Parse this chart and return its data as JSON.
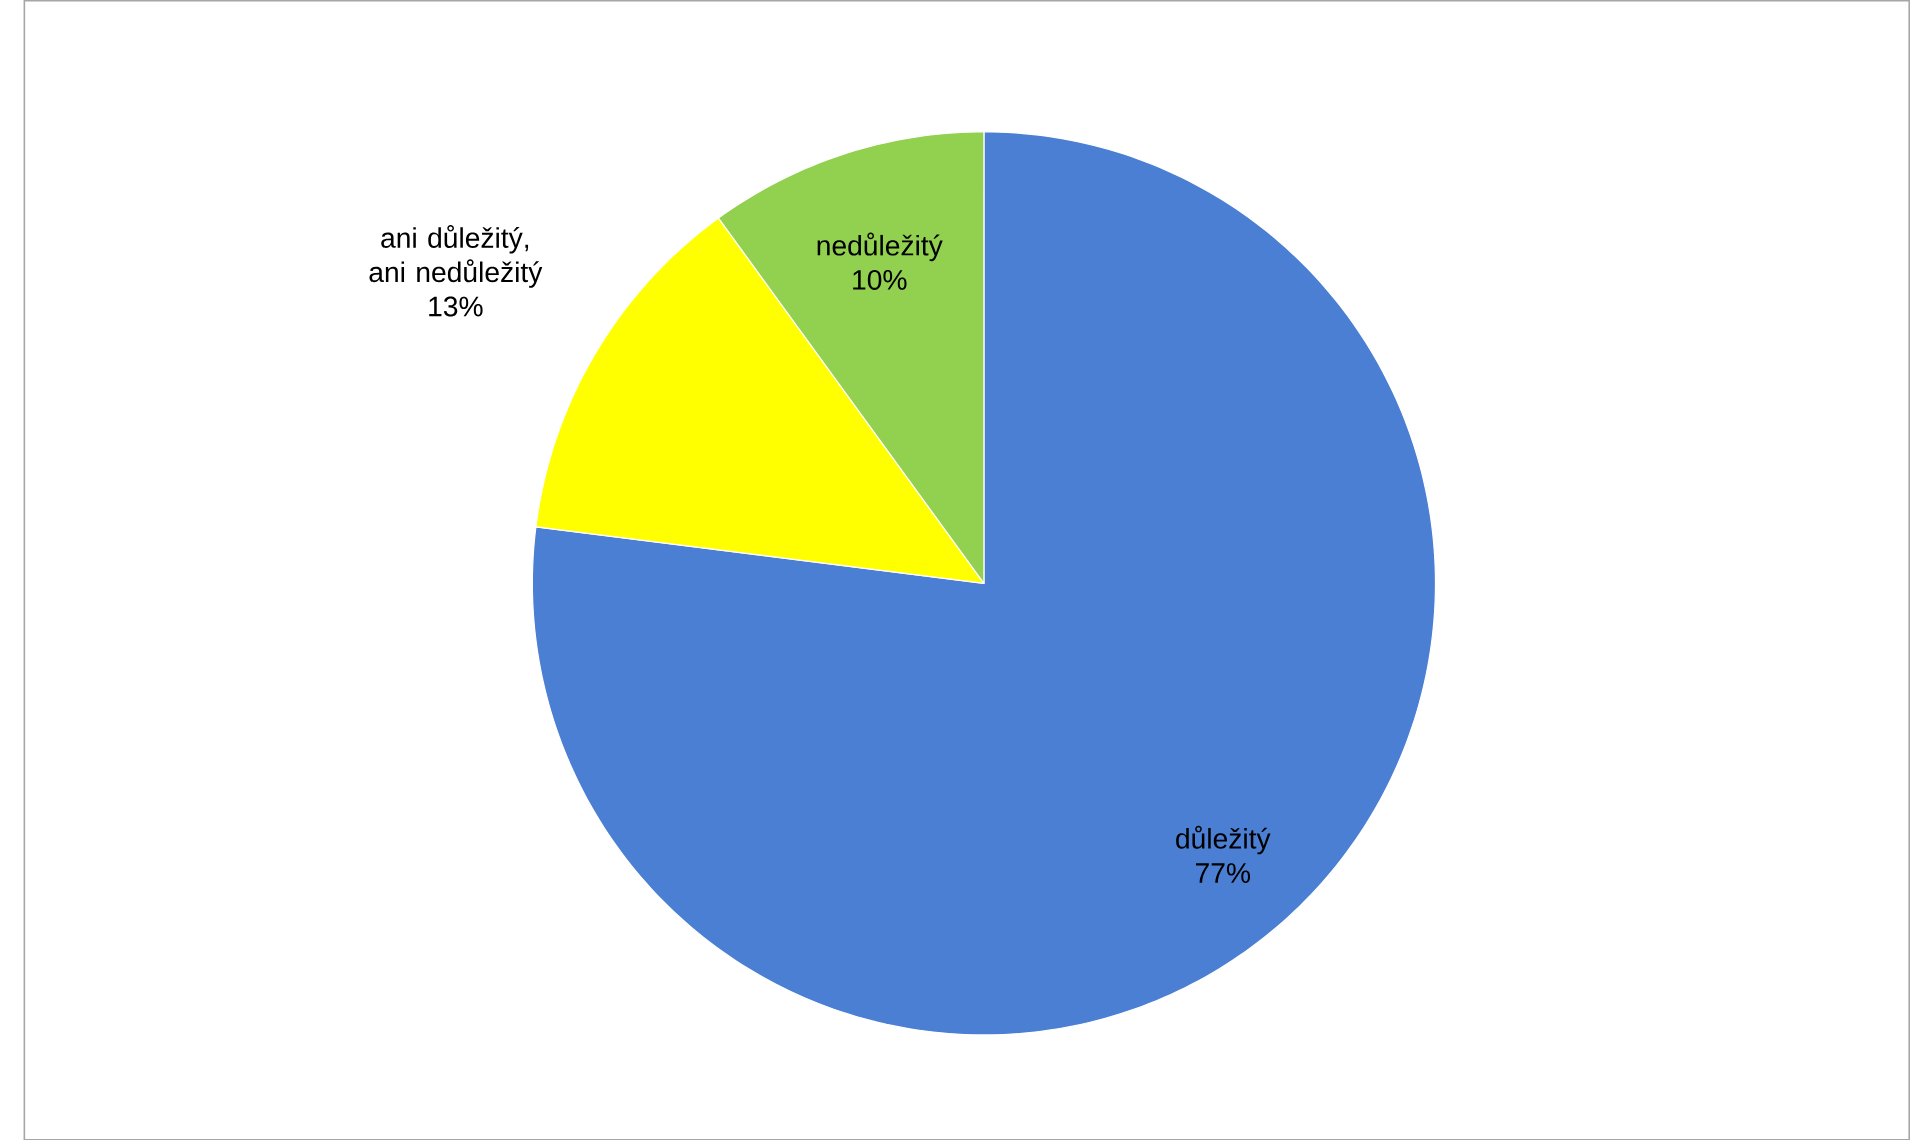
{
  "chart_data": {
    "type": "pie",
    "categories": [
      "důležitý",
      "ani důležitý, ani nedůležitý",
      "nedůležitý"
    ],
    "values": [
      77,
      13,
      10
    ],
    "colors": [
      "#4A7FD4",
      "#FFFF00",
      "#92D050"
    ],
    "value_labels": [
      "77%",
      "13%",
      "10%"
    ]
  }
}
